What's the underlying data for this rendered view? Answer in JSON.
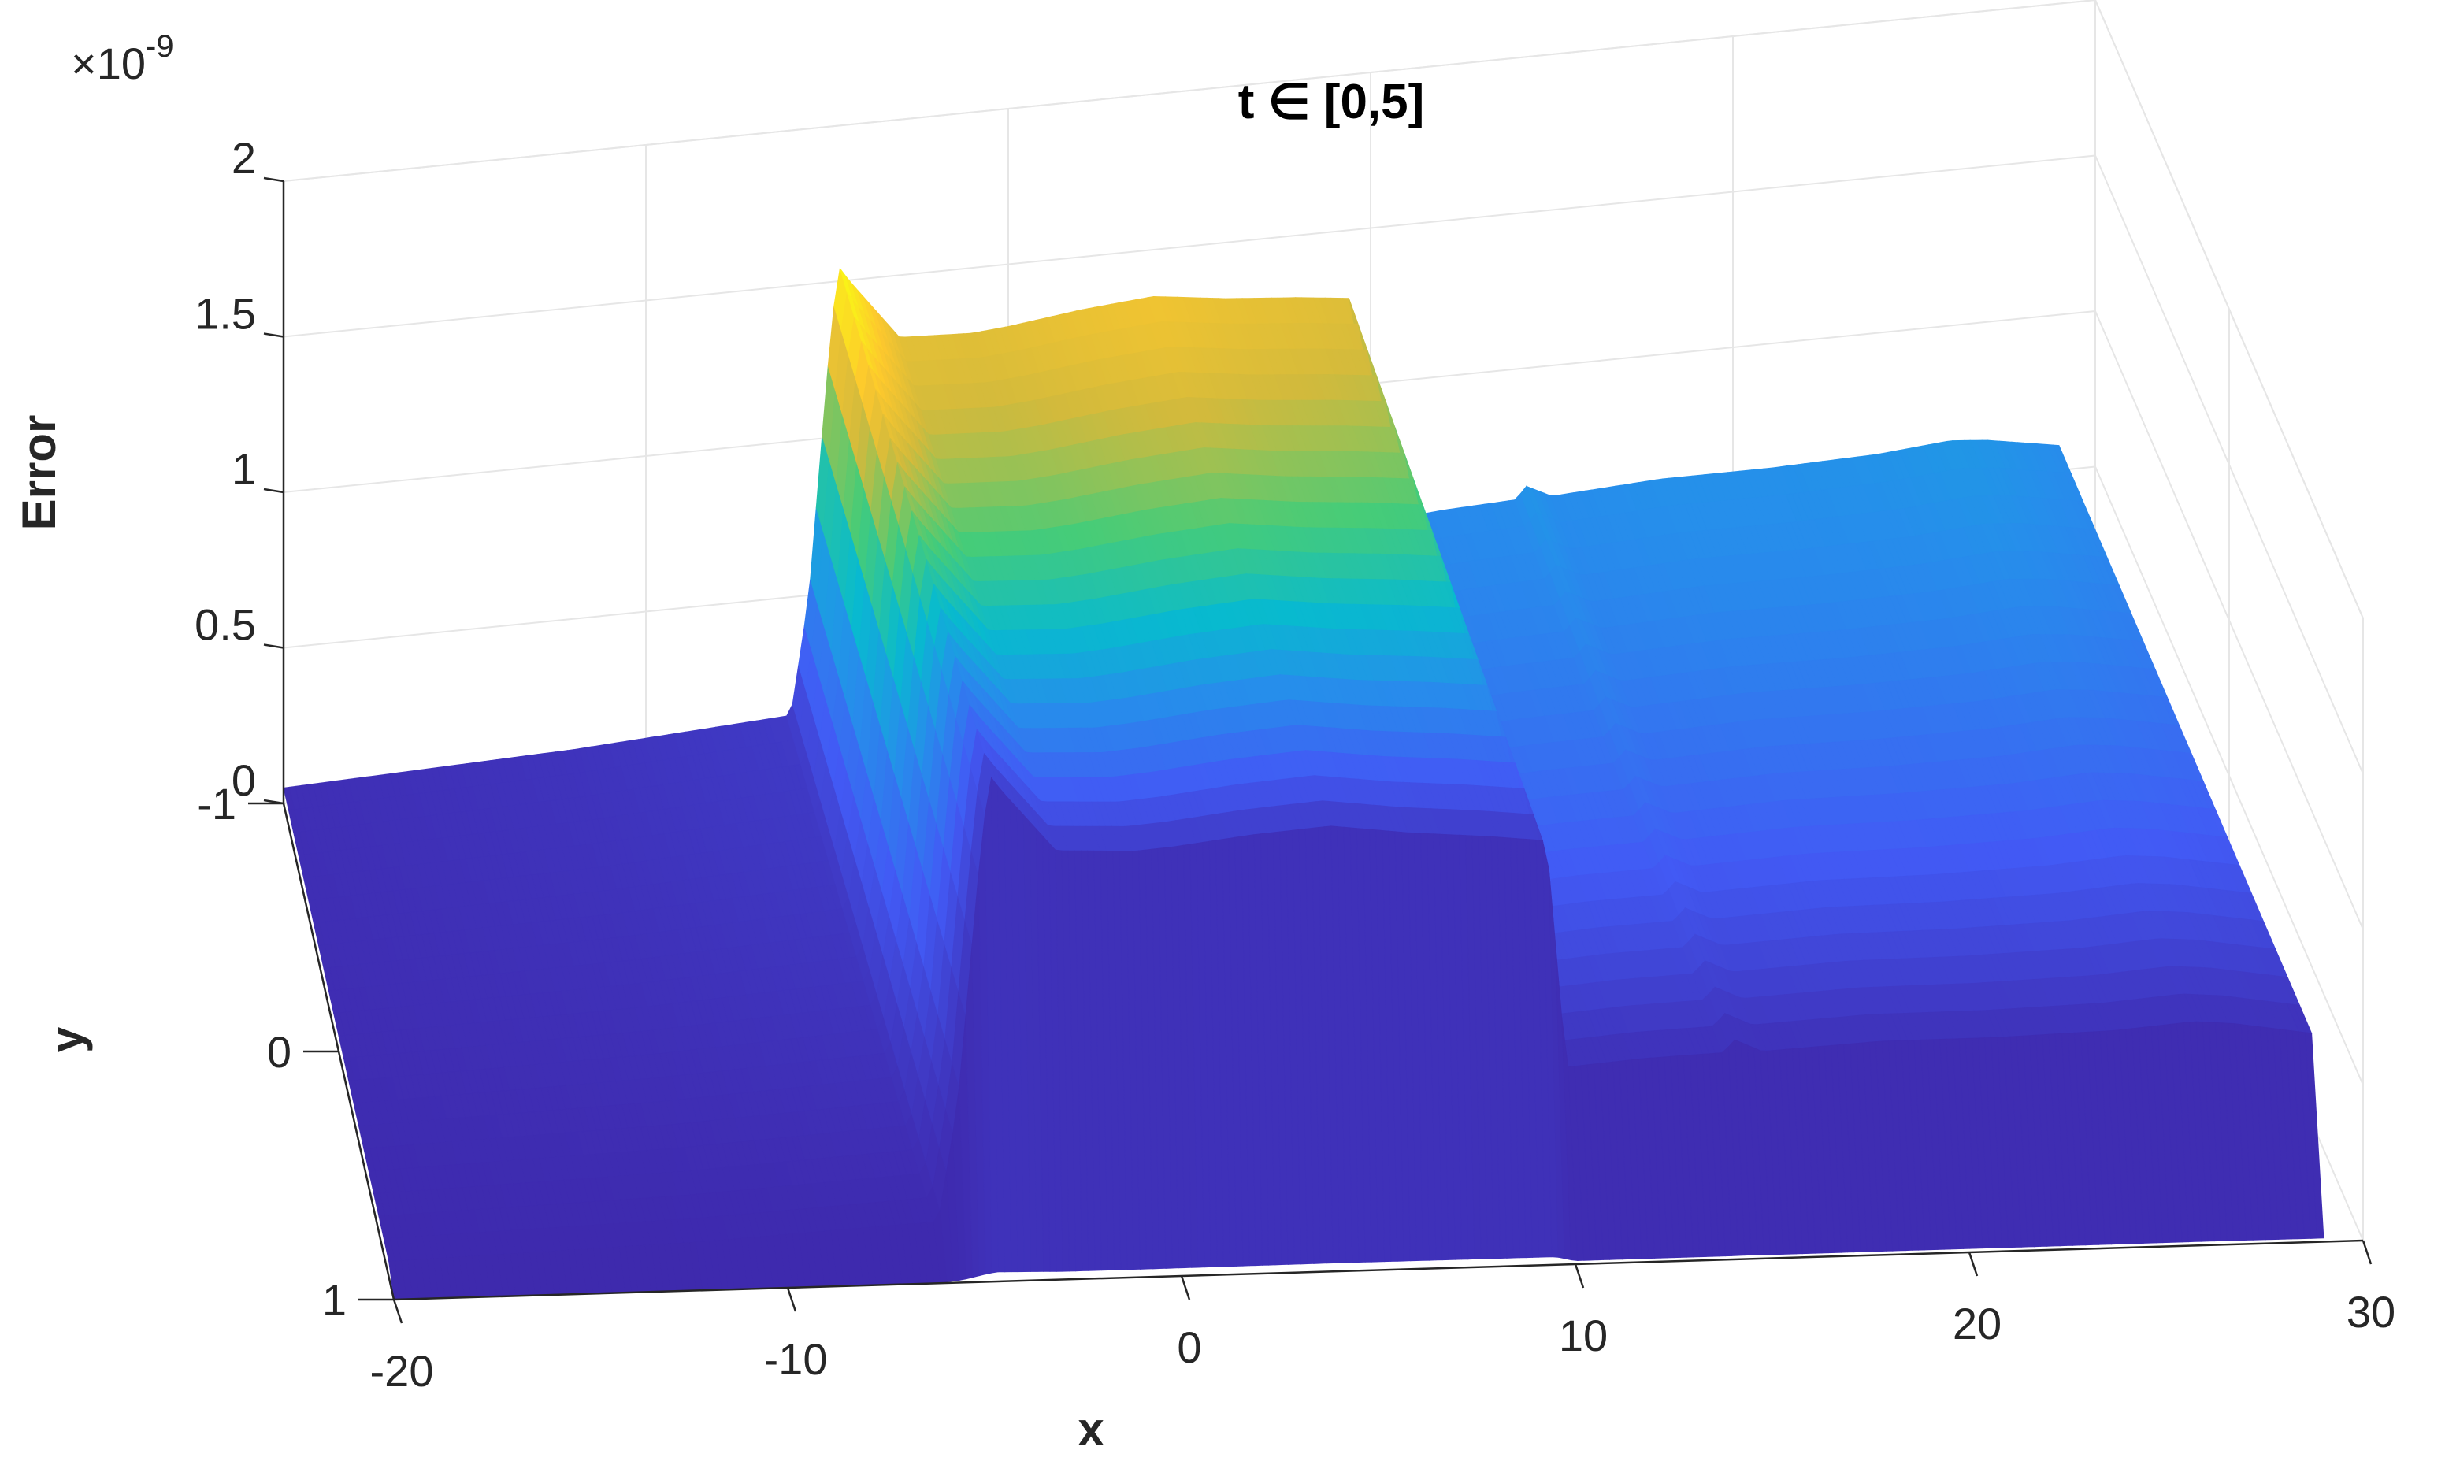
{
  "chart_data": {
    "type": "surface",
    "title": "t ∈ [0,5]",
    "xlabel": "x",
    "ylabel": "y",
    "zlabel": "Error",
    "z_multiplier": "×10",
    "z_exponent": "-9",
    "xlim": [
      -20,
      30
    ],
    "ylim": [
      -1,
      1
    ],
    "zlim": [
      0,
      2
    ],
    "x_ticks": [
      "-20",
      "-10",
      "0",
      "10",
      "20",
      "30"
    ],
    "y_ticks": [
      "-1",
      "0",
      "1"
    ],
    "z_ticks": [
      "0",
      "0.5",
      "1",
      "1.5",
      "2"
    ],
    "grid": true,
    "colormap": "parula",
    "profile": {
      "x": [
        -20,
        -12,
        -6,
        -5.5,
        -5,
        -4.7,
        -4.4,
        -3,
        -1,
        0,
        2,
        4,
        6,
        8,
        9.5,
        10,
        12,
        14,
        14.3,
        15,
        18,
        21,
        24,
        26,
        27,
        28,
        29
      ],
      "z": [
        0.05,
        0.08,
        0.12,
        0.5,
        1.2,
        1.55,
        1.5,
        1.3,
        1.29,
        1.3,
        1.33,
        1.35,
        1.32,
        1.3,
        1.28,
        0.55,
        0.57,
        0.58,
        0.62,
        0.58,
        0.6,
        0.6,
        0.61,
        0.63,
        0.62,
        0.6,
        0.58
      ]
    }
  }
}
